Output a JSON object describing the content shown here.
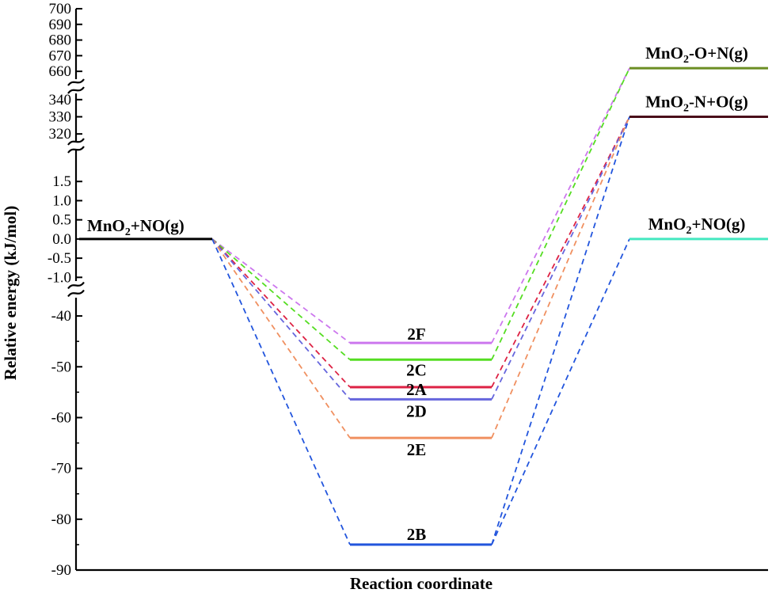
{
  "chart_data": {
    "type": "line",
    "title": "",
    "xlabel": "Reaction coordinate",
    "ylabel": "Relative energy (kJ/mol)",
    "y_axis_breaks": [
      {
        "segment": "top",
        "range": [
          655,
          700
        ],
        "ticks": [
          660,
          670,
          680,
          690,
          700
        ]
      },
      {
        "segment": "upper-middle",
        "range": [
          315,
          345
        ],
        "ticks": [
          320,
          330,
          340
        ]
      },
      {
        "segment": "middle",
        "range": [
          -1.2,
          2.0
        ],
        "ticks": [
          "1.5",
          "1.0",
          "0.5",
          "0.0",
          "-0.5",
          "-1.0"
        ]
      },
      {
        "segment": "bottom",
        "range": [
          -90,
          -35
        ],
        "ticks": [
          -40,
          -50,
          -60,
          -70,
          -80,
          -90
        ]
      }
    ],
    "stages": [
      "initial",
      "intermediate",
      "final"
    ],
    "initial_state": {
      "label_parts": [
        "MnO",
        "2",
        "+NO(g)"
      ],
      "energy": 0.0,
      "color": "#000000"
    },
    "intermediates": [
      {
        "name": "2F",
        "energy": -45.3,
        "color": "#CC77EE"
      },
      {
        "name": "2C",
        "energy": -48.6,
        "color": "#55DD22"
      },
      {
        "name": "2A",
        "energy": -54.0,
        "color": "#DD2244"
      },
      {
        "name": "2D",
        "energy": -56.4,
        "color": "#6666DD"
      },
      {
        "name": "2E",
        "energy": -64.0,
        "color": "#F09060"
      },
      {
        "name": "2B",
        "energy": -85.0,
        "color": "#2255DD"
      }
    ],
    "final_states": [
      {
        "id": "o_n",
        "label_parts": [
          "MnO",
          "2",
          "-O+N(g)"
        ],
        "energy": 662,
        "color": "#6B8E23"
      },
      {
        "id": "n_o",
        "label_parts": [
          "MnO",
          "2",
          "-N+O(g)"
        ],
        "energy": 330,
        "color": "#4A0E1A"
      },
      {
        "id": "no",
        "label_parts": [
          "MnO",
          "2",
          "+NO(g)"
        ],
        "energy": 0.0,
        "color": "#44E8C0"
      }
    ],
    "connections": [
      {
        "from": "2F",
        "to": "o_n"
      },
      {
        "from": "2C",
        "to": "o_n"
      },
      {
        "from": "2A",
        "to": "n_o"
      },
      {
        "from": "2D",
        "to": "n_o"
      },
      {
        "from": "2E",
        "to": "n_o"
      },
      {
        "from": "2B",
        "to": "n_o"
      },
      {
        "from": "2B",
        "to": "no"
      }
    ],
    "legend": "none",
    "grid": false
  }
}
